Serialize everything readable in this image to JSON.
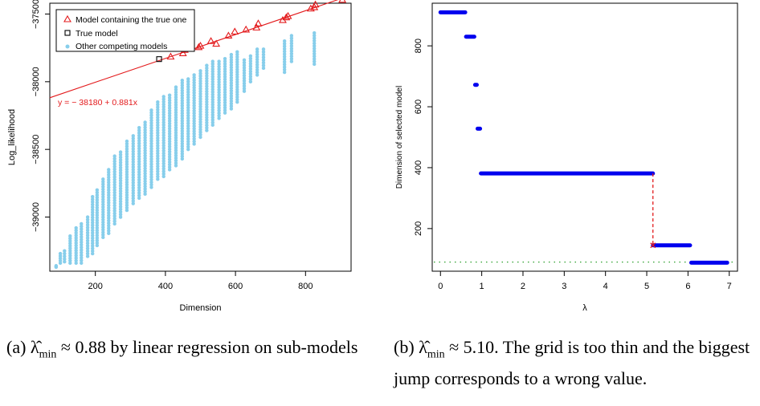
{
  "chart_data": [
    {
      "type": "scatter",
      "panel": "a",
      "xlabel": "Dimension",
      "ylabel": "Log_likelihood",
      "xlim": [
        70,
        930
      ],
      "ylim": [
        -39400,
        -37420
      ],
      "xticks": [
        200,
        400,
        600,
        800
      ],
      "yticks": [
        -39000,
        -38500,
        -38000,
        -37500
      ],
      "legend_position": "top-left",
      "legend": [
        {
          "label": "Model containing the true one",
          "marker": "triangle",
          "color": "#e31a1c"
        },
        {
          "label": "True model",
          "marker": "square",
          "color": "#000000"
        },
        {
          "label": "Other competing models",
          "marker": "dot",
          "color": "#87ceeb"
        }
      ],
      "regression_line": {
        "intercept": -38180,
        "slope": 0.881,
        "label": "y = − 38180 + 0.881x",
        "color": "#e31a1c"
      },
      "true_model": {
        "x": 382,
        "y": -37833
      },
      "triangles": [
        {
          "x": 415,
          "y": -37815
        },
        {
          "x": 450,
          "y": -37790
        },
        {
          "x": 455,
          "y": -37765
        },
        {
          "x": 495,
          "y": -37745
        },
        {
          "x": 500,
          "y": -37735
        },
        {
          "x": 530,
          "y": -37700
        },
        {
          "x": 545,
          "y": -37720
        },
        {
          "x": 580,
          "y": -37660
        },
        {
          "x": 598,
          "y": -37630
        },
        {
          "x": 630,
          "y": -37615
        },
        {
          "x": 660,
          "y": -37600
        },
        {
          "x": 665,
          "y": -37570
        },
        {
          "x": 735,
          "y": -37545
        },
        {
          "x": 745,
          "y": -37525
        },
        {
          "x": 750,
          "y": -37515
        },
        {
          "x": 815,
          "y": -37460
        },
        {
          "x": 825,
          "y": -37450
        },
        {
          "x": 828,
          "y": -37430
        },
        {
          "x": 905,
          "y": -37395
        }
      ],
      "other_clusters": [
        {
          "x": 88,
          "y_low": -39370,
          "y_high": -39360
        },
        {
          "x": 100,
          "y_low": -39340,
          "y_high": -39270
        },
        {
          "x": 112,
          "y_low": -39330,
          "y_high": -39250
        },
        {
          "x": 128,
          "y_low": -39340,
          "y_high": -39140
        },
        {
          "x": 145,
          "y_low": -39340,
          "y_high": -39080
        },
        {
          "x": 160,
          "y_low": -39340,
          "y_high": -39050
        },
        {
          "x": 178,
          "y_low": -39290,
          "y_high": -39000
        },
        {
          "x": 192,
          "y_low": -39270,
          "y_high": -38850
        },
        {
          "x": 205,
          "y_low": -39210,
          "y_high": -38800
        },
        {
          "x": 222,
          "y_low": -39150,
          "y_high": -38720
        },
        {
          "x": 238,
          "y_low": -39120,
          "y_high": -38650
        },
        {
          "x": 255,
          "y_low": -39050,
          "y_high": -38550
        },
        {
          "x": 272,
          "y_low": -39000,
          "y_high": -38520
        },
        {
          "x": 290,
          "y_low": -38950,
          "y_high": -38440
        },
        {
          "x": 308,
          "y_low": -38900,
          "y_high": -38400
        },
        {
          "x": 325,
          "y_low": -38860,
          "y_high": -38340
        },
        {
          "x": 342,
          "y_low": -38830,
          "y_high": -38300
        },
        {
          "x": 360,
          "y_low": -38780,
          "y_high": -38210
        },
        {
          "x": 378,
          "y_low": -38720,
          "y_high": -38150
        },
        {
          "x": 395,
          "y_low": -38700,
          "y_high": -38110
        },
        {
          "x": 412,
          "y_low": -38650,
          "y_high": -38100
        },
        {
          "x": 430,
          "y_low": -38620,
          "y_high": -38040
        },
        {
          "x": 448,
          "y_low": -38570,
          "y_high": -37990
        },
        {
          "x": 465,
          "y_low": -38500,
          "y_high": -37980
        },
        {
          "x": 482,
          "y_low": -38460,
          "y_high": -37950
        },
        {
          "x": 500,
          "y_low": -38410,
          "y_high": -37920
        },
        {
          "x": 518,
          "y_low": -38360,
          "y_high": -37880
        },
        {
          "x": 535,
          "y_low": -38320,
          "y_high": -37850
        },
        {
          "x": 553,
          "y_low": -38270,
          "y_high": -37850
        },
        {
          "x": 570,
          "y_low": -38230,
          "y_high": -37830
        },
        {
          "x": 588,
          "y_low": -38200,
          "y_high": -37800
        },
        {
          "x": 605,
          "y_low": -38150,
          "y_high": -37780
        },
        {
          "x": 625,
          "y_low": -38070,
          "y_high": -37840
        },
        {
          "x": 643,
          "y_low": -38000,
          "y_high": -37810
        },
        {
          "x": 662,
          "y_low": -37950,
          "y_high": -37760
        },
        {
          "x": 680,
          "y_low": -37900,
          "y_high": -37760
        },
        {
          "x": 740,
          "y_low": -37930,
          "y_high": -37700
        },
        {
          "x": 760,
          "y_low": -37850,
          "y_high": -37660
        },
        {
          "x": 825,
          "y_low": -37870,
          "y_high": -37640
        }
      ]
    },
    {
      "type": "scatter",
      "panel": "b",
      "xlabel": "λ",
      "ylabel": "Dimension of selected model",
      "xlim": [
        -0.2,
        7.2
      ],
      "ylim": [
        60,
        940
      ],
      "xticks": [
        0,
        1,
        2,
        3,
        4,
        5,
        6,
        7
      ],
      "yticks": [
        200,
        400,
        600,
        800
      ],
      "steps": [
        {
          "x_start": 0.0,
          "x_end": 0.6,
          "y": 910
        },
        {
          "x_start": 0.62,
          "x_end": 0.82,
          "y": 830
        },
        {
          "x_start": 0.84,
          "x_end": 0.88,
          "y": 672
        },
        {
          "x_start": 0.9,
          "x_end": 0.96,
          "y": 528
        },
        {
          "x_start": 0.98,
          "x_end": 5.15,
          "y": 381
        },
        {
          "x_start": 5.15,
          "x_end": 6.05,
          "y": 145
        },
        {
          "x_start": 6.08,
          "x_end": 6.95,
          "y": 88
        }
      ],
      "jump": {
        "x": 5.15,
        "y_top": 381,
        "y_bottom": 145,
        "color": "#e31a1c"
      },
      "true_dimension_line": {
        "y": 90,
        "color": "#2ca02c"
      }
    }
  ],
  "captions": {
    "a_prefix": "(a) ",
    "a_main": "λ̂",
    "a_sub": "min",
    "a_rest": " ≈ 0.88 by linear regression on sub-models",
    "b_prefix": "(b) ",
    "b_main": "λ̂",
    "b_sub": "min",
    "b_rest": " ≈ 5.10. The grid is too thin and the biggest jump corresponds to a wrong value."
  }
}
